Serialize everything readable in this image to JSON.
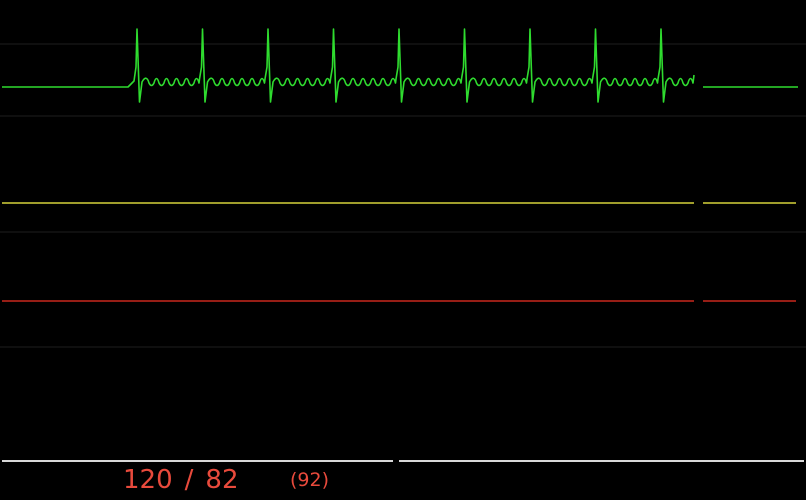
{
  "colors": {
    "background": "#000000",
    "ecg_trace": "#2fdc2f",
    "pleth_trace": "#d6d23a",
    "arterial_trace": "#c9281e",
    "bottom_trace": "#d8d8d8",
    "divider": "#1e1e1e",
    "bp_text": "#e84a3c"
  },
  "waveforms": {
    "ecg": {
      "name": "ecg-waveform",
      "beats": 9
    },
    "pleth": {
      "name": "pleth-waveform"
    },
    "arterial": {
      "name": "arterial-waveform"
    },
    "bottom": {
      "name": "bottom-trace"
    }
  },
  "blood_pressure": {
    "systolic": "120",
    "separator": "/",
    "diastolic": "82",
    "mean": "(92)"
  }
}
